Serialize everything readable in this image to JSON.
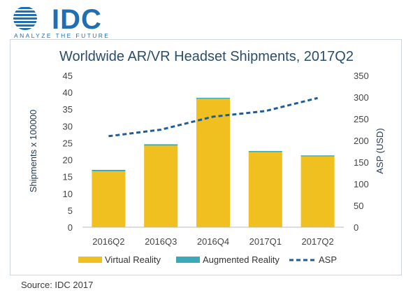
{
  "header": {
    "logo_text": "IDC",
    "logo_tagline": "ANALYZE THE FUTURE"
  },
  "footer": {
    "source": "Source: IDC 2017"
  },
  "colors": {
    "vr": "#f0c020",
    "ar": "#3aa9b8",
    "asp": "#1f5c99",
    "logo": "#1f6fb2"
  },
  "chart_data": {
    "type": "bar",
    "title": "Worldwide AR/VR Headset Shipments, 2017Q2",
    "categories": [
      "2016Q2",
      "2016Q3",
      "2016Q4",
      "2017Q1",
      "2017Q2"
    ],
    "stacked": true,
    "series": [
      {
        "name": "Virtual Reality",
        "axis": "left",
        "values": [
          16.6,
          24.2,
          38.1,
          22.3,
          21.0
        ]
      },
      {
        "name": "Augmented Reality",
        "axis": "left",
        "values": [
          0.4,
          0.4,
          0.3,
          0.3,
          0.3
        ]
      },
      {
        "name": "ASP",
        "axis": "right",
        "type": "line",
        "style": "dashed",
        "values": [
          210,
          225,
          255,
          268,
          298
        ]
      }
    ],
    "ylabel_left": "Shipments x 100000",
    "ylabel_right": "ASP (USD)",
    "ylim_left": [
      0,
      45
    ],
    "ylim_right": [
      0,
      350
    ],
    "yticks_left": [
      "0",
      "5",
      "10",
      "15",
      "20",
      "25",
      "30",
      "35",
      "40",
      "45"
    ],
    "yticks_right": [
      "0",
      "50",
      "100",
      "150",
      "200",
      "250",
      "300",
      "350"
    ],
    "legend_position": "bottom",
    "grid": false
  }
}
